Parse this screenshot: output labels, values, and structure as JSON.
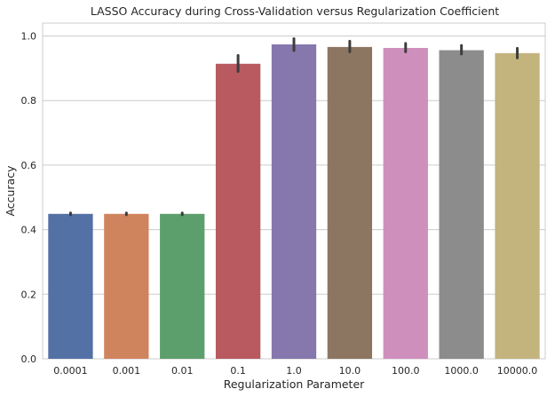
{
  "chart_data": {
    "type": "bar",
    "title": "LASSO Accuracy during Cross-Validation versus Regularization Coefficient",
    "xlabel": "Regularization Parameter",
    "ylabel": "Accuracy",
    "ylim": [
      0,
      1.04
    ],
    "yticks": [
      "0.0",
      "0.2",
      "0.4",
      "0.6",
      "0.8",
      "1.0"
    ],
    "grid": "horizontal",
    "categories": [
      "0.0001",
      "0.001",
      "0.01",
      "0.1",
      "1.0",
      "10.0",
      "100.0",
      "1000.0",
      "10000.0"
    ],
    "values": [
      0.449,
      0.449,
      0.449,
      0.914,
      0.974,
      0.966,
      0.963,
      0.956,
      0.947
    ],
    "error_low": [
      0.446,
      0.446,
      0.446,
      0.89,
      0.955,
      0.951,
      0.951,
      0.944,
      0.932
    ],
    "error_high": [
      0.452,
      0.452,
      0.452,
      0.94,
      0.992,
      0.984,
      0.977,
      0.971,
      0.962
    ],
    "colors": [
      "#5471a5",
      "#d0845e",
      "#5d9f6c",
      "#b85a60",
      "#8677ad",
      "#8d7661",
      "#cf8fbd",
      "#8c8c8c",
      "#c3b47d"
    ]
  }
}
